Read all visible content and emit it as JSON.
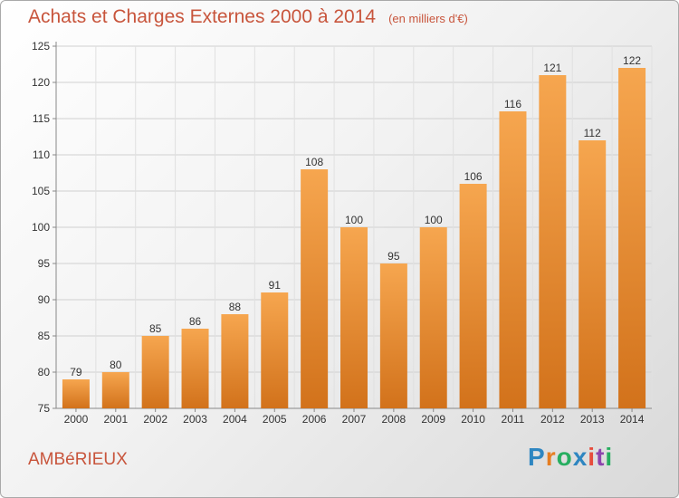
{
  "title": "Achats et Charges Externes 2000 à 2014",
  "subtitle": "(en milliers d'€)",
  "place": "AMBéRIEUX",
  "logo": {
    "letters": [
      "P",
      "r",
      "o",
      "x",
      "i",
      "t",
      "i"
    ],
    "colors": [
      "#2e86c1",
      "#e67e22",
      "#27ae60",
      "#2e86c1",
      "#e74c3c",
      "#8e44ad",
      "#27ae60"
    ]
  },
  "colors": {
    "bar_top": "#f6a64f",
    "bar_bottom": "#d2721b",
    "title": "#c8553c"
  },
  "chart_data": {
    "type": "bar",
    "title": "Achats et Charges Externes 2000 à 2014",
    "subtitle": "(en milliers d'€)",
    "categories": [
      "2000",
      "2001",
      "2002",
      "2003",
      "2004",
      "2005",
      "2006",
      "2007",
      "2008",
      "2009",
      "2010",
      "2011",
      "2012",
      "2013",
      "2014"
    ],
    "values": [
      79,
      80,
      85,
      86,
      88,
      91,
      108,
      100,
      95,
      100,
      106,
      116,
      121,
      112,
      122
    ],
    "ylim": [
      75,
      125
    ],
    "yticks": [
      75,
      80,
      85,
      90,
      95,
      100,
      105,
      110,
      115,
      120,
      125
    ],
    "grid": true
  }
}
